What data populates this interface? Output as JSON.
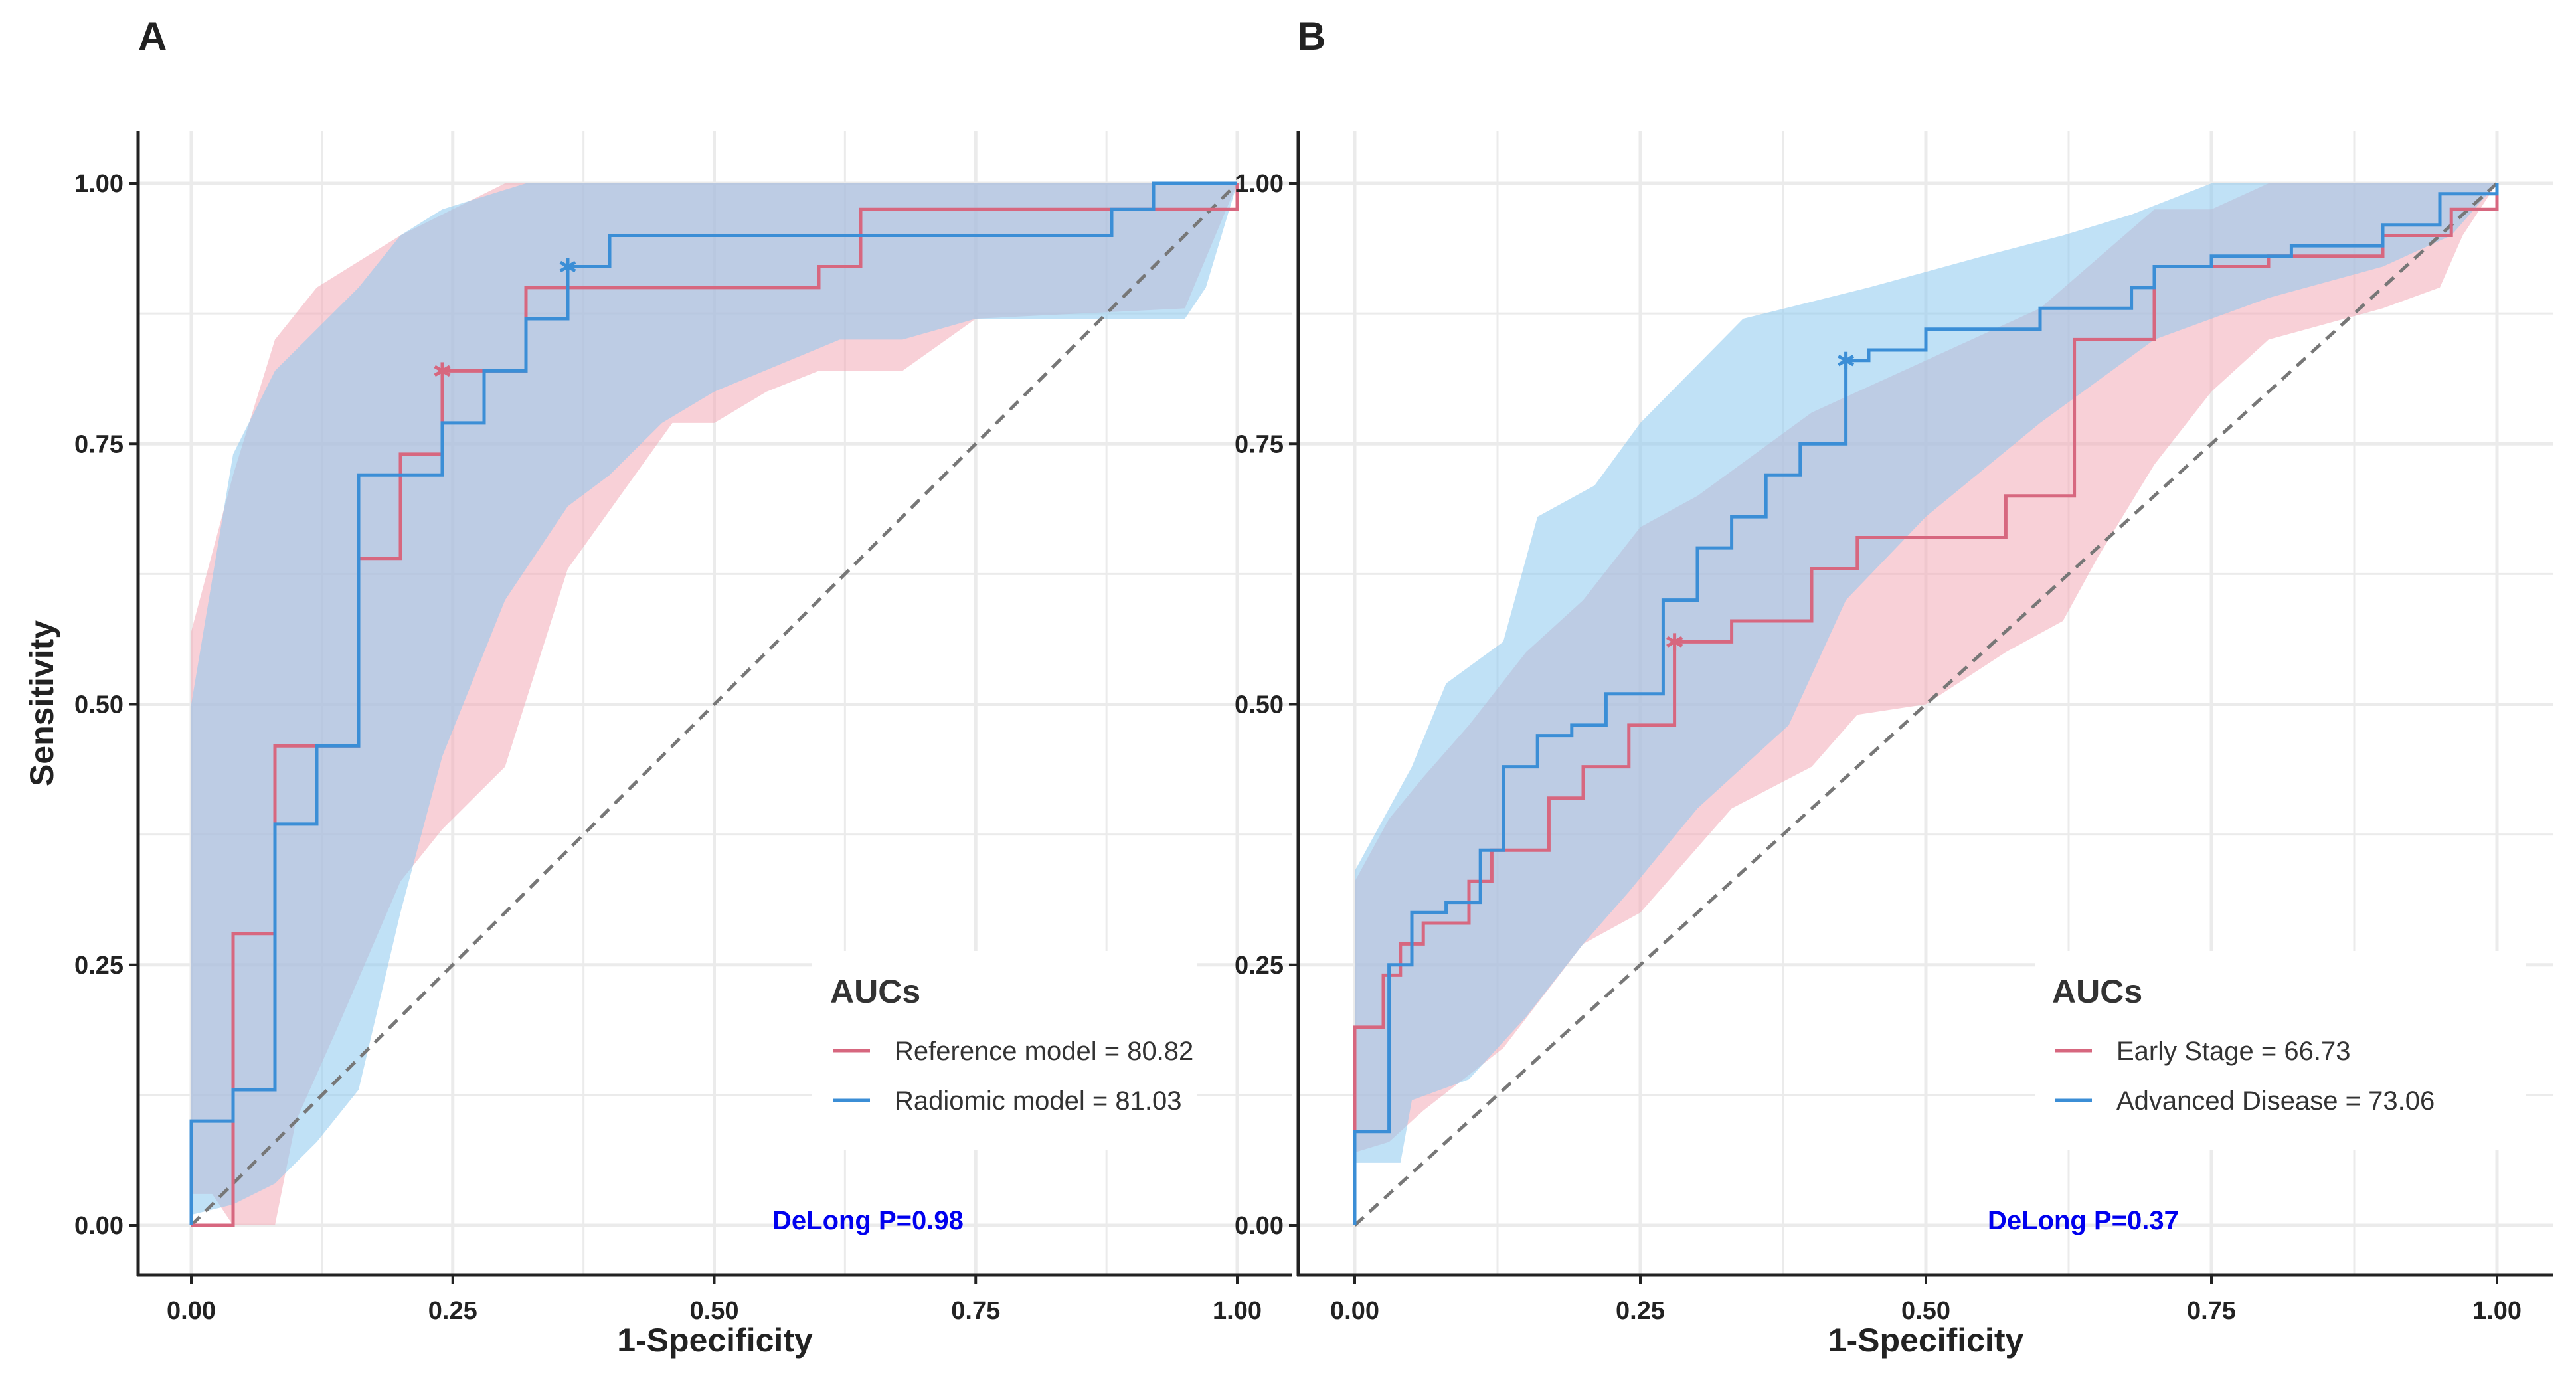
{
  "colors": {
    "red": "#d7677f",
    "blue": "#3b8ed6",
    "red_fill": "#f2aab6",
    "blue_fill": "#8cc8ef",
    "pvalue": "#0000ee",
    "grid": "#ebebeb",
    "diagonal": "#777777"
  },
  "chart_data": [
    {
      "panel": "A",
      "type": "line",
      "title": "",
      "xlabel": "1-Specificity",
      "ylabel": "Sensitivity",
      "xlim": [
        0,
        1
      ],
      "ylim": [
        0,
        1
      ],
      "xticks": [
        "0.00",
        "0.25",
        "0.50",
        "0.75",
        "1.00"
      ],
      "yticks": [
        "0.00",
        "0.25",
        "0.50",
        "0.75",
        "1.00"
      ],
      "grid": true,
      "legend_title": "AUCs",
      "legend_position": "bottom-right",
      "pvalue_text": "DeLong P=0.98",
      "series": [
        {
          "name": "Reference model = 80.82",
          "color": "red",
          "x": [
            0,
            0.04,
            0.04,
            0.08,
            0.08,
            0.16,
            0.16,
            0.2,
            0.2,
            0.24,
            0.24,
            0.32,
            0.32,
            0.6,
            0.6,
            0.64,
            0.64,
            1,
            1
          ],
          "y": [
            0,
            0,
            0.28,
            0.28,
            0.46,
            0.46,
            0.64,
            0.64,
            0.74,
            0.74,
            0.82,
            0.82,
            0.9,
            0.9,
            0.92,
            0.92,
            0.975,
            0.975,
            1
          ],
          "optimal_point": [
            0.24,
            0.82
          ],
          "ci_upper": [
            [
              0,
              0.57
            ],
            [
              0.04,
              0.72
            ],
            [
              0.08,
              0.85
            ],
            [
              0.12,
              0.9
            ],
            [
              0.2,
              0.95
            ],
            [
              0.3,
              1
            ],
            [
              1,
              1
            ]
          ],
          "ci_lower": [
            [
              1,
              1
            ],
            [
              0.95,
              0.88
            ],
            [
              0.75,
              0.87
            ],
            [
              0.68,
              0.82
            ],
            [
              0.6,
              0.82
            ],
            [
              0.55,
              0.8
            ],
            [
              0.5,
              0.77
            ],
            [
              0.46,
              0.77
            ],
            [
              0.36,
              0.63
            ],
            [
              0.3,
              0.44
            ],
            [
              0.24,
              0.38
            ],
            [
              0.2,
              0.33
            ],
            [
              0.14,
              0.19
            ],
            [
              0.1,
              0.1
            ],
            [
              0.08,
              0
            ],
            [
              0.04,
              0
            ],
            [
              0.02,
              0.03
            ],
            [
              0,
              0.03
            ]
          ]
        },
        {
          "name": "Radiomic model = 81.03",
          "color": "blue",
          "x": [
            0,
            0,
            0.04,
            0.04,
            0.08,
            0.08,
            0.12,
            0.12,
            0.16,
            0.16,
            0.24,
            0.24,
            0.28,
            0.28,
            0.32,
            0.32,
            0.36,
            0.36,
            0.4,
            0.4,
            0.88,
            0.88,
            0.92,
            0.92,
            1,
            1
          ],
          "y": [
            0,
            0.1,
            0.1,
            0.13,
            0.13,
            0.385,
            0.385,
            0.46,
            0.46,
            0.72,
            0.72,
            0.77,
            0.77,
            0.82,
            0.82,
            0.87,
            0.87,
            0.92,
            0.92,
            0.95,
            0.95,
            0.975,
            0.975,
            1,
            1,
            1
          ],
          "optimal_point": [
            0.36,
            0.92
          ],
          "ci_upper": [
            [
              0,
              0.5
            ],
            [
              0.04,
              0.74
            ],
            [
              0.08,
              0.82
            ],
            [
              0.16,
              0.9
            ],
            [
              0.2,
              0.95
            ],
            [
              0.24,
              0.975
            ],
            [
              0.32,
              1
            ],
            [
              1,
              1
            ]
          ],
          "ci_lower": [
            [
              1,
              1
            ],
            [
              0.97,
              0.9
            ],
            [
              0.95,
              0.87
            ],
            [
              0.75,
              0.87
            ],
            [
              0.68,
              0.85
            ],
            [
              0.62,
              0.85
            ],
            [
              0.5,
              0.8
            ],
            [
              0.45,
              0.77
            ],
            [
              0.4,
              0.72
            ],
            [
              0.36,
              0.69
            ],
            [
              0.3,
              0.6
            ],
            [
              0.24,
              0.45
            ],
            [
              0.2,
              0.3
            ],
            [
              0.16,
              0.13
            ],
            [
              0.12,
              0.08
            ],
            [
              0.08,
              0.04
            ],
            [
              0.04,
              0.02
            ],
            [
              0,
              0.01
            ]
          ]
        }
      ]
    },
    {
      "panel": "B",
      "type": "line",
      "title": "",
      "xlabel": "1-Specificity",
      "ylabel": "",
      "xlim": [
        0,
        1
      ],
      "ylim": [
        0,
        1
      ],
      "xticks": [
        "0.00",
        "0.25",
        "0.50",
        "0.75",
        "1.00"
      ],
      "yticks": [
        "0.00",
        "0.25",
        "0.50",
        "0.75",
        "1.00"
      ],
      "grid": true,
      "legend_title": "AUCs",
      "legend_position": "bottom-right",
      "pvalue_text": "DeLong P=0.37",
      "series": [
        {
          "name": "Early Stage = 66.73",
          "color": "red",
          "x": [
            0,
            0,
            0.025,
            0.025,
            0.04,
            0.04,
            0.06,
            0.06,
            0.1,
            0.1,
            0.12,
            0.12,
            0.17,
            0.17,
            0.2,
            0.2,
            0.24,
            0.24,
            0.28,
            0.28,
            0.33,
            0.33,
            0.4,
            0.4,
            0.44,
            0.44,
            0.57,
            0.57,
            0.63,
            0.63,
            0.7,
            0.7,
            0.8,
            0.8,
            0.9,
            0.9,
            0.96,
            0.96,
            1,
            1
          ],
          "y": [
            0,
            0.19,
            0.19,
            0.24,
            0.24,
            0.27,
            0.27,
            0.29,
            0.29,
            0.33,
            0.33,
            0.36,
            0.36,
            0.41,
            0.41,
            0.44,
            0.44,
            0.48,
            0.48,
            0.56,
            0.56,
            0.58,
            0.58,
            0.63,
            0.63,
            0.66,
            0.66,
            0.7,
            0.7,
            0.85,
            0.85,
            0.92,
            0.92,
            0.93,
            0.93,
            0.95,
            0.95,
            0.975,
            0.975,
            1
          ],
          "optimal_point": [
            0.28,
            0.56
          ],
          "ci_upper": [
            [
              0,
              0.33
            ],
            [
              0.03,
              0.39
            ],
            [
              0.06,
              0.43
            ],
            [
              0.1,
              0.48
            ],
            [
              0.15,
              0.55
            ],
            [
              0.2,
              0.6
            ],
            [
              0.25,
              0.67
            ],
            [
              0.3,
              0.7
            ],
            [
              0.4,
              0.78
            ],
            [
              0.5,
              0.83
            ],
            [
              0.6,
              0.88
            ],
            [
              0.7,
              0.975
            ],
            [
              0.75,
              0.975
            ],
            [
              0.8,
              1
            ],
            [
              1,
              1
            ]
          ],
          "ci_lower": [
            [
              1,
              1
            ],
            [
              0.97,
              0.95
            ],
            [
              0.95,
              0.9
            ],
            [
              0.9,
              0.88
            ],
            [
              0.8,
              0.85
            ],
            [
              0.75,
              0.8
            ],
            [
              0.7,
              0.73
            ],
            [
              0.65,
              0.64
            ],
            [
              0.62,
              0.58
            ],
            [
              0.57,
              0.55
            ],
            [
              0.5,
              0.5
            ],
            [
              0.44,
              0.49
            ],
            [
              0.4,
              0.44
            ],
            [
              0.33,
              0.4
            ],
            [
              0.25,
              0.3
            ],
            [
              0.2,
              0.27
            ],
            [
              0.13,
              0.17
            ],
            [
              0.06,
              0.11
            ],
            [
              0.03,
              0.08
            ],
            [
              0,
              0.07
            ]
          ]
        },
        {
          "name": "Advanced Disease = 73.06",
          "color": "blue",
          "x": [
            0,
            0,
            0.03,
            0.03,
            0.05,
            0.05,
            0.08,
            0.08,
            0.11,
            0.11,
            0.13,
            0.13,
            0.16,
            0.16,
            0.19,
            0.19,
            0.22,
            0.22,
            0.27,
            0.27,
            0.3,
            0.3,
            0.33,
            0.33,
            0.36,
            0.36,
            0.39,
            0.39,
            0.43,
            0.43,
            0.45,
            0.45,
            0.5,
            0.5,
            0.6,
            0.6,
            0.68,
            0.68,
            0.7,
            0.7,
            0.75,
            0.75,
            0.82,
            0.82,
            0.9,
            0.9,
            0.95,
            0.95,
            1,
            1
          ],
          "y": [
            0,
            0.09,
            0.09,
            0.25,
            0.25,
            0.3,
            0.3,
            0.31,
            0.31,
            0.36,
            0.36,
            0.44,
            0.44,
            0.47,
            0.47,
            0.48,
            0.48,
            0.51,
            0.51,
            0.6,
            0.6,
            0.65,
            0.65,
            0.68,
            0.68,
            0.72,
            0.72,
            0.75,
            0.75,
            0.83,
            0.83,
            0.84,
            0.84,
            0.86,
            0.86,
            0.88,
            0.88,
            0.9,
            0.9,
            0.92,
            0.92,
            0.93,
            0.93,
            0.94,
            0.94,
            0.96,
            0.96,
            0.99,
            0.99,
            1
          ],
          "optimal_point": [
            0.43,
            0.83
          ],
          "ci_upper": [
            [
              0,
              0.34
            ],
            [
              0.05,
              0.44
            ],
            [
              0.08,
              0.52
            ],
            [
              0.13,
              0.56
            ],
            [
              0.16,
              0.68
            ],
            [
              0.21,
              0.71
            ],
            [
              0.25,
              0.77
            ],
            [
              0.34,
              0.87
            ],
            [
              0.45,
              0.9
            ],
            [
              0.55,
              0.93
            ],
            [
              0.62,
              0.95
            ],
            [
              0.68,
              0.97
            ],
            [
              0.75,
              1
            ],
            [
              1,
              1
            ]
          ],
          "ci_lower": [
            [
              1,
              1
            ],
            [
              0.96,
              0.95
            ],
            [
              0.9,
              0.92
            ],
            [
              0.8,
              0.89
            ],
            [
              0.7,
              0.85
            ],
            [
              0.6,
              0.77
            ],
            [
              0.5,
              0.68
            ],
            [
              0.43,
              0.6
            ],
            [
              0.38,
              0.48
            ],
            [
              0.3,
              0.4
            ],
            [
              0.24,
              0.32
            ],
            [
              0.2,
              0.27
            ],
            [
              0.15,
              0.2
            ],
            [
              0.1,
              0.14
            ],
            [
              0.05,
              0.12
            ],
            [
              0.04,
              0.06
            ],
            [
              0.02,
              0.06
            ],
            [
              0,
              0.06
            ]
          ]
        }
      ]
    }
  ]
}
